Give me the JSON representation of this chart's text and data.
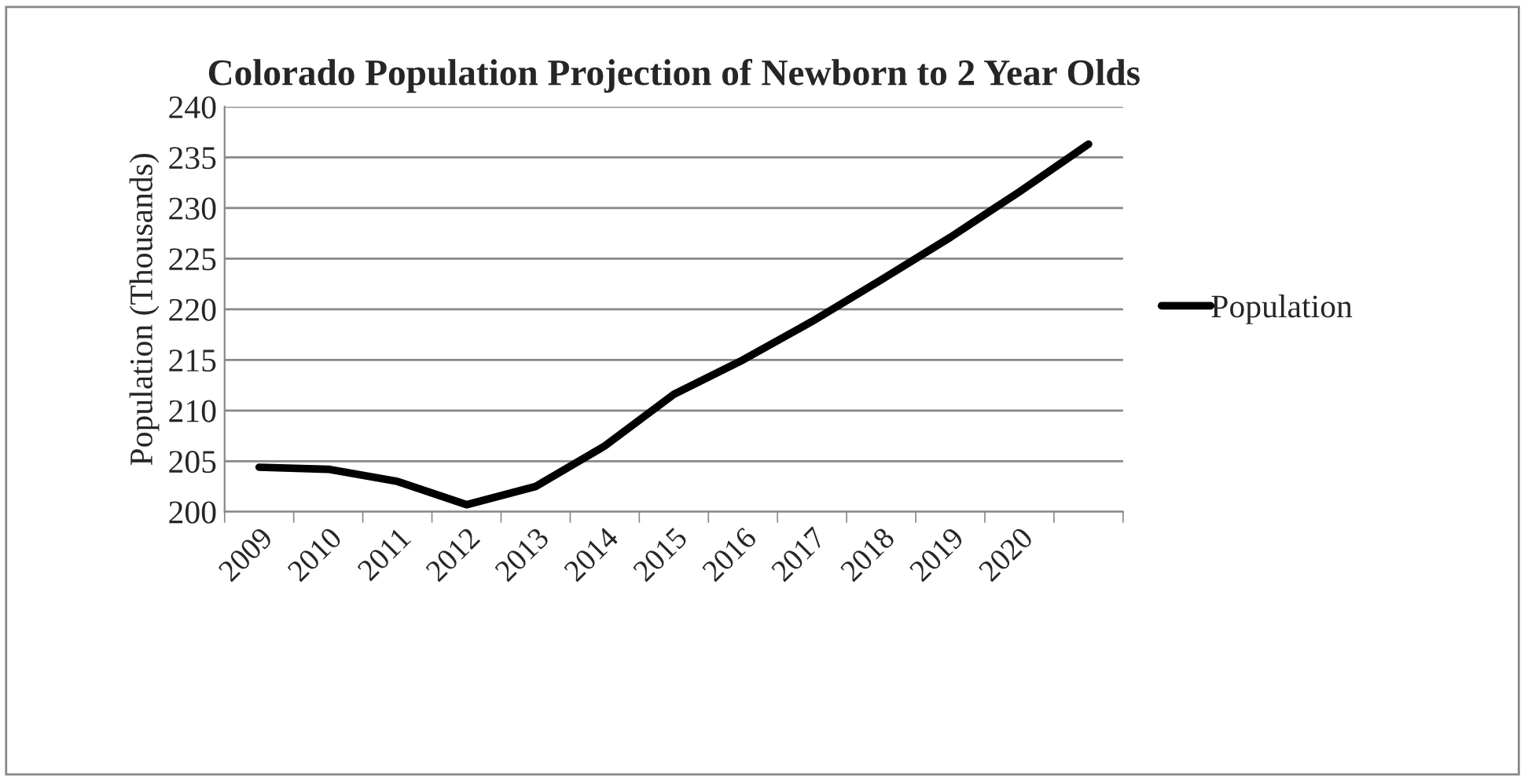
{
  "chart_data": {
    "type": "line",
    "title": "Colorado Population Projection of Newborn to 2 Year Olds",
    "ylabel": "Population (Thousands)",
    "categories": [
      "2009",
      "2010",
      "2011",
      "2012",
      "2013",
      "2014",
      "2015",
      "2016",
      "2017",
      "2018",
      "2019",
      "2020",
      null
    ],
    "series": [
      {
        "name": "Population",
        "color": "#000000",
        "values": [
          204.4,
          204.2,
          203.0,
          200.7,
          202.5,
          206.5,
          211.6,
          215.0,
          218.8,
          222.9,
          227.1,
          231.6,
          236.3
        ]
      }
    ],
    "ylim": [
      200,
      240
    ],
    "yticks": [
      200,
      205,
      210,
      215,
      220,
      225,
      230,
      235,
      240
    ],
    "grid": "y",
    "legend": "right",
    "marker": "none",
    "line_style": "solid"
  }
}
